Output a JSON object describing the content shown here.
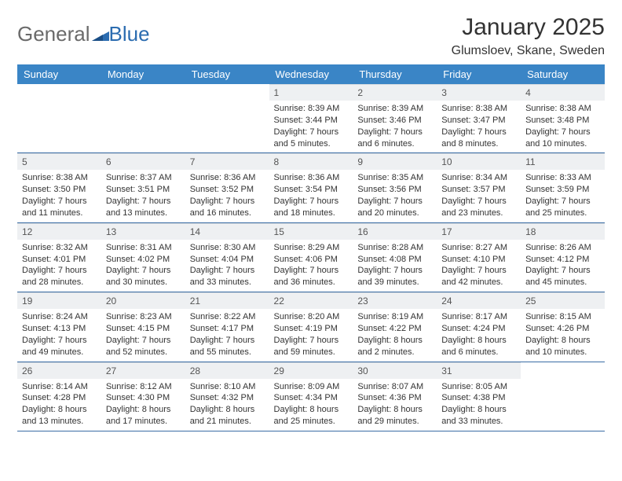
{
  "brand": {
    "general": "General",
    "blue": "Blue"
  },
  "title": "January 2025",
  "location": "Glumsloev, Skane, Sweden",
  "colors": {
    "header_bg": "#3a85c6",
    "header_text": "#ffffff",
    "daynum_bg": "#eef0f2",
    "row_border": "#3a6da5",
    "logo_gray": "#6a6a6a",
    "logo_blue": "#2b6cb0"
  },
  "weekdays": [
    "Sunday",
    "Monday",
    "Tuesday",
    "Wednesday",
    "Thursday",
    "Friday",
    "Saturday"
  ],
  "weeks": [
    [
      {
        "n": "",
        "sr": "",
        "ss": "",
        "dl": ""
      },
      {
        "n": "",
        "sr": "",
        "ss": "",
        "dl": ""
      },
      {
        "n": "",
        "sr": "",
        "ss": "",
        "dl": ""
      },
      {
        "n": "1",
        "sr": "Sunrise: 8:39 AM",
        "ss": "Sunset: 3:44 PM",
        "dl": "Daylight: 7 hours and 5 minutes."
      },
      {
        "n": "2",
        "sr": "Sunrise: 8:39 AM",
        "ss": "Sunset: 3:46 PM",
        "dl": "Daylight: 7 hours and 6 minutes."
      },
      {
        "n": "3",
        "sr": "Sunrise: 8:38 AM",
        "ss": "Sunset: 3:47 PM",
        "dl": "Daylight: 7 hours and 8 minutes."
      },
      {
        "n": "4",
        "sr": "Sunrise: 8:38 AM",
        "ss": "Sunset: 3:48 PM",
        "dl": "Daylight: 7 hours and 10 minutes."
      }
    ],
    [
      {
        "n": "5",
        "sr": "Sunrise: 8:38 AM",
        "ss": "Sunset: 3:50 PM",
        "dl": "Daylight: 7 hours and 11 minutes."
      },
      {
        "n": "6",
        "sr": "Sunrise: 8:37 AM",
        "ss": "Sunset: 3:51 PM",
        "dl": "Daylight: 7 hours and 13 minutes."
      },
      {
        "n": "7",
        "sr": "Sunrise: 8:36 AM",
        "ss": "Sunset: 3:52 PM",
        "dl": "Daylight: 7 hours and 16 minutes."
      },
      {
        "n": "8",
        "sr": "Sunrise: 8:36 AM",
        "ss": "Sunset: 3:54 PM",
        "dl": "Daylight: 7 hours and 18 minutes."
      },
      {
        "n": "9",
        "sr": "Sunrise: 8:35 AM",
        "ss": "Sunset: 3:56 PM",
        "dl": "Daylight: 7 hours and 20 minutes."
      },
      {
        "n": "10",
        "sr": "Sunrise: 8:34 AM",
        "ss": "Sunset: 3:57 PM",
        "dl": "Daylight: 7 hours and 23 minutes."
      },
      {
        "n": "11",
        "sr": "Sunrise: 8:33 AM",
        "ss": "Sunset: 3:59 PM",
        "dl": "Daylight: 7 hours and 25 minutes."
      }
    ],
    [
      {
        "n": "12",
        "sr": "Sunrise: 8:32 AM",
        "ss": "Sunset: 4:01 PM",
        "dl": "Daylight: 7 hours and 28 minutes."
      },
      {
        "n": "13",
        "sr": "Sunrise: 8:31 AM",
        "ss": "Sunset: 4:02 PM",
        "dl": "Daylight: 7 hours and 30 minutes."
      },
      {
        "n": "14",
        "sr": "Sunrise: 8:30 AM",
        "ss": "Sunset: 4:04 PM",
        "dl": "Daylight: 7 hours and 33 minutes."
      },
      {
        "n": "15",
        "sr": "Sunrise: 8:29 AM",
        "ss": "Sunset: 4:06 PM",
        "dl": "Daylight: 7 hours and 36 minutes."
      },
      {
        "n": "16",
        "sr": "Sunrise: 8:28 AM",
        "ss": "Sunset: 4:08 PM",
        "dl": "Daylight: 7 hours and 39 minutes."
      },
      {
        "n": "17",
        "sr": "Sunrise: 8:27 AM",
        "ss": "Sunset: 4:10 PM",
        "dl": "Daylight: 7 hours and 42 minutes."
      },
      {
        "n": "18",
        "sr": "Sunrise: 8:26 AM",
        "ss": "Sunset: 4:12 PM",
        "dl": "Daylight: 7 hours and 45 minutes."
      }
    ],
    [
      {
        "n": "19",
        "sr": "Sunrise: 8:24 AM",
        "ss": "Sunset: 4:13 PM",
        "dl": "Daylight: 7 hours and 49 minutes."
      },
      {
        "n": "20",
        "sr": "Sunrise: 8:23 AM",
        "ss": "Sunset: 4:15 PM",
        "dl": "Daylight: 7 hours and 52 minutes."
      },
      {
        "n": "21",
        "sr": "Sunrise: 8:22 AM",
        "ss": "Sunset: 4:17 PM",
        "dl": "Daylight: 7 hours and 55 minutes."
      },
      {
        "n": "22",
        "sr": "Sunrise: 8:20 AM",
        "ss": "Sunset: 4:19 PM",
        "dl": "Daylight: 7 hours and 59 minutes."
      },
      {
        "n": "23",
        "sr": "Sunrise: 8:19 AM",
        "ss": "Sunset: 4:22 PM",
        "dl": "Daylight: 8 hours and 2 minutes."
      },
      {
        "n": "24",
        "sr": "Sunrise: 8:17 AM",
        "ss": "Sunset: 4:24 PM",
        "dl": "Daylight: 8 hours and 6 minutes."
      },
      {
        "n": "25",
        "sr": "Sunrise: 8:15 AM",
        "ss": "Sunset: 4:26 PM",
        "dl": "Daylight: 8 hours and 10 minutes."
      }
    ],
    [
      {
        "n": "26",
        "sr": "Sunrise: 8:14 AM",
        "ss": "Sunset: 4:28 PM",
        "dl": "Daylight: 8 hours and 13 minutes."
      },
      {
        "n": "27",
        "sr": "Sunrise: 8:12 AM",
        "ss": "Sunset: 4:30 PM",
        "dl": "Daylight: 8 hours and 17 minutes."
      },
      {
        "n": "28",
        "sr": "Sunrise: 8:10 AM",
        "ss": "Sunset: 4:32 PM",
        "dl": "Daylight: 8 hours and 21 minutes."
      },
      {
        "n": "29",
        "sr": "Sunrise: 8:09 AM",
        "ss": "Sunset: 4:34 PM",
        "dl": "Daylight: 8 hours and 25 minutes."
      },
      {
        "n": "30",
        "sr": "Sunrise: 8:07 AM",
        "ss": "Sunset: 4:36 PM",
        "dl": "Daylight: 8 hours and 29 minutes."
      },
      {
        "n": "31",
        "sr": "Sunrise: 8:05 AM",
        "ss": "Sunset: 4:38 PM",
        "dl": "Daylight: 8 hours and 33 minutes."
      },
      {
        "n": "",
        "sr": "",
        "ss": "",
        "dl": ""
      }
    ]
  ]
}
